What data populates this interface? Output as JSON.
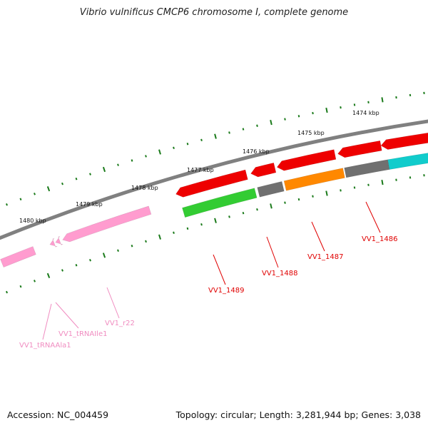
{
  "title": "Vibrio vulnificus CMCP6 chromosome I, complete genome",
  "footer": {
    "accession": "Accession: NC_004459",
    "summary": "Topology: circular; Length: 3,281,944 bp; Genes: 3,038"
  },
  "map": {
    "ticks": [
      "1474 kbp",
      "1475 kbp",
      "1476 kbp",
      "1477 kbp",
      "1478 kbp",
      "1479 kbp",
      "1480 kbp"
    ],
    "colors": {
      "backbone": "#808080",
      "tick": "#1a7a1a",
      "red": "#ee0000",
      "green": "#33cc33",
      "gray": "#707070",
      "orange": "#ff8800",
      "cyan": "#11cccc",
      "pink": "#ff9ccf",
      "label_red": "#e00000",
      "label_pink": "#f08cc0"
    },
    "labels": {
      "vv1_1486": "VV1_1486",
      "vv1_1487": "VV1_1487",
      "vv1_1488": "VV1_1488",
      "vv1_1489": "VV1_1489",
      "vv1_r22": "VV1_r22",
      "vv1_trnaile1": "VV1_tRNAIle1",
      "vv1_trnaala1": "VV1_tRNAAla1"
    }
  }
}
